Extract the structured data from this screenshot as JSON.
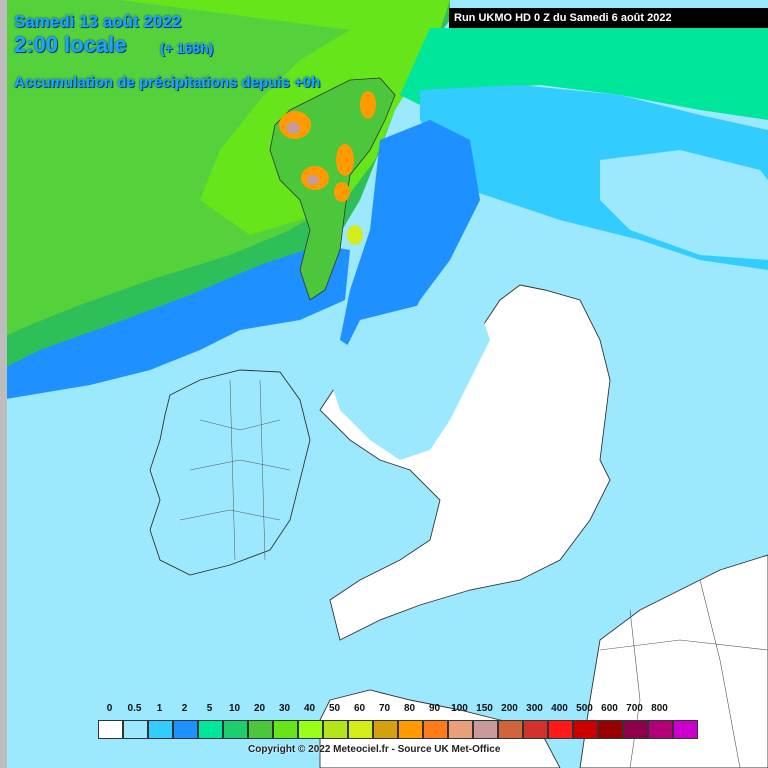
{
  "header": {
    "date": "Samedi 13 août 2022",
    "local_time": "2:00 locale",
    "lead_time": "(+ 168h)",
    "field": "Accumulation de précipitations depuis +0h"
  },
  "run_banner": "Run UKMO HD 0 Z du Samedi 6 août 2022",
  "legend": {
    "labels": [
      "0",
      "0.5",
      "1",
      "2",
      "5",
      "10",
      "20",
      "30",
      "40",
      "50",
      "60",
      "70",
      "80",
      "90",
      "100",
      "150",
      "200",
      "300",
      "400",
      "500",
      "600",
      "700",
      "800"
    ],
    "colors": [
      "#ffffff",
      "#9be8ff",
      "#33ccff",
      "#1e90ff",
      "#00e69a",
      "#1ecd6e",
      "#4cc73c",
      "#66e61a",
      "#99ff1a",
      "#b3e61a",
      "#d4ec1a",
      "#d4a00e",
      "#ff9a00",
      "#ff7a1a",
      "#e8a07a",
      "#c89a9a",
      "#d2643c",
      "#d2322d",
      "#ff1a1a",
      "#cc0000",
      "#990000",
      "#8c004a",
      "#b3007a",
      "#cc00cc"
    ]
  },
  "colors": {
    "sea_background": "#9be8ff",
    "land": "#ffffff",
    "title_text": "#1aa6ff"
  },
  "copyright": "Copyright © 2022 Meteociel.fr - Source UK Met-Office"
}
